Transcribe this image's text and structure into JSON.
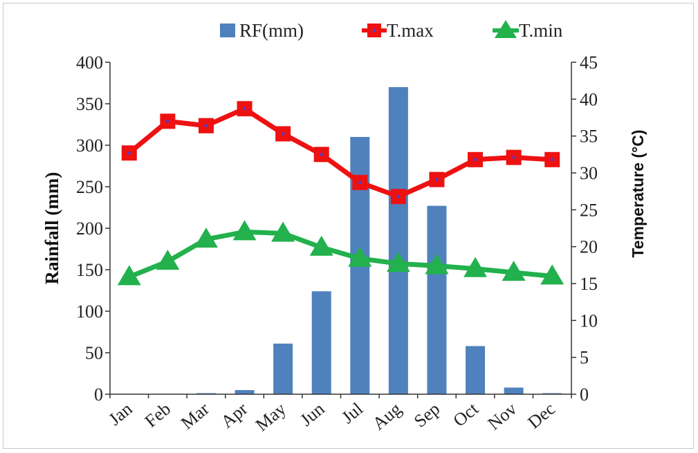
{
  "chart_data": {
    "type": "bar+line",
    "categories": [
      "Jan",
      "Feb",
      "Mar",
      "Apr",
      "May",
      "Jun",
      "Jul",
      "Aug",
      "Sep",
      "Oct",
      "Nov",
      "Dec"
    ],
    "ylabel_left": "Rainfall (mm)",
    "ylabel_right": "Temperature (°C)",
    "ylim_left": [
      0,
      400
    ],
    "ylim_right": [
      0,
      45
    ],
    "yticks_left": [
      0,
      50,
      100,
      150,
      200,
      250,
      300,
      350,
      400
    ],
    "yticks_right": [
      0,
      5,
      10,
      15,
      20,
      25,
      30,
      35,
      40,
      45
    ],
    "legend_position": "top",
    "grid": false,
    "series": [
      {
        "name": "RF(mm)",
        "type": "bar",
        "axis": "left",
        "color": "#4f81bd",
        "values": [
          0,
          0,
          1,
          5,
          61,
          124,
          310,
          370,
          227,
          58,
          8,
          1
        ]
      },
      {
        "name": "T.max",
        "type": "line",
        "axis": "right",
        "color": "#ee1111",
        "marker": "square",
        "values": [
          32.7,
          37.0,
          36.4,
          38.7,
          35.3,
          32.5,
          28.7,
          26.8,
          29.1,
          31.8,
          32.1,
          31.8
        ]
      },
      {
        "name": "T.min",
        "type": "line",
        "axis": "right",
        "color": "#22b14c",
        "marker": "triangle",
        "values": [
          15.9,
          18.0,
          21.0,
          22.0,
          21.8,
          19.9,
          18.4,
          17.7,
          17.4,
          17.0,
          16.5,
          16.0
        ]
      }
    ]
  }
}
